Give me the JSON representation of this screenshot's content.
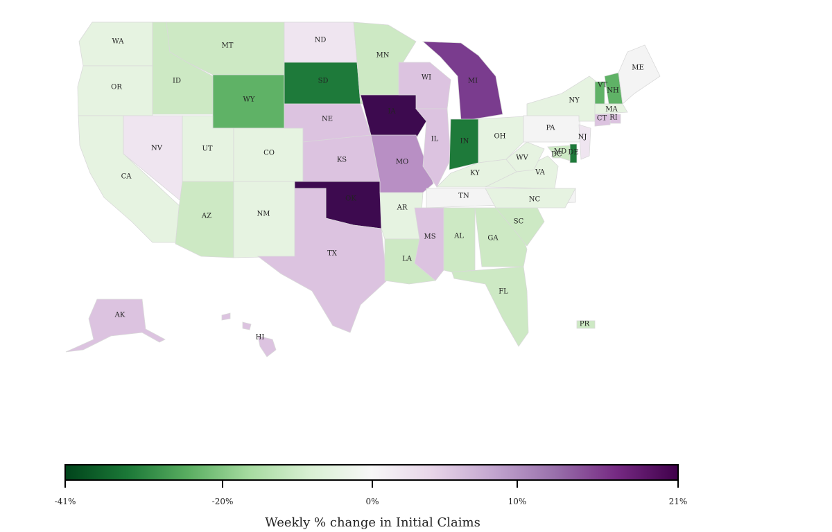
{
  "colors": {
    "dark_green": "#1e7a3a",
    "mid_green": "#5fb266",
    "light_green": "#cde9c4",
    "pale_green": "#e6f3e1",
    "neutral": "#f4f4f4",
    "pale_purple": "#efe5f0",
    "light_purple": "#dcc3e0",
    "mid_purple": "#b88fc4",
    "purple": "#7a3c8e",
    "dark_purple": "#3d0a4f"
  },
  "states": [
    {
      "abbr": "WA",
      "tone": "pale_green"
    },
    {
      "abbr": "OR",
      "tone": "pale_green"
    },
    {
      "abbr": "CA",
      "tone": "pale_green"
    },
    {
      "abbr": "ID",
      "tone": "light_green"
    },
    {
      "abbr": "MT",
      "tone": "light_green"
    },
    {
      "abbr": "WY",
      "tone": "mid_green"
    },
    {
      "abbr": "NV",
      "tone": "pale_purple"
    },
    {
      "abbr": "UT",
      "tone": "pale_green"
    },
    {
      "abbr": "CO",
      "tone": "pale_green"
    },
    {
      "abbr": "AZ",
      "tone": "light_green"
    },
    {
      "abbr": "NM",
      "tone": "pale_green"
    },
    {
      "abbr": "ND",
      "tone": "pale_purple"
    },
    {
      "abbr": "SD",
      "tone": "dark_green"
    },
    {
      "abbr": "NE",
      "tone": "light_purple"
    },
    {
      "abbr": "KS",
      "tone": "light_purple"
    },
    {
      "abbr": "OK",
      "tone": "dark_purple"
    },
    {
      "abbr": "TX",
      "tone": "light_purple"
    },
    {
      "abbr": "MN",
      "tone": "light_green"
    },
    {
      "abbr": "IA",
      "tone": "dark_purple"
    },
    {
      "abbr": "MO",
      "tone": "mid_purple"
    },
    {
      "abbr": "AR",
      "tone": "pale_green"
    },
    {
      "abbr": "LA",
      "tone": "light_green"
    },
    {
      "abbr": "WI",
      "tone": "light_purple"
    },
    {
      "abbr": "IL",
      "tone": "light_purple"
    },
    {
      "abbr": "MI",
      "tone": "purple"
    },
    {
      "abbr": "IN",
      "tone": "dark_green"
    },
    {
      "abbr": "OH",
      "tone": "pale_green"
    },
    {
      "abbr": "KY",
      "tone": "pale_green"
    },
    {
      "abbr": "TN",
      "tone": "neutral"
    },
    {
      "abbr": "MS",
      "tone": "light_purple"
    },
    {
      "abbr": "AL",
      "tone": "light_green"
    },
    {
      "abbr": "GA",
      "tone": "light_green"
    },
    {
      "abbr": "FL",
      "tone": "light_green"
    },
    {
      "abbr": "SC",
      "tone": "light_green"
    },
    {
      "abbr": "NC",
      "tone": "pale_green"
    },
    {
      "abbr": "VA",
      "tone": "pale_green"
    },
    {
      "abbr": "WV",
      "tone": "pale_green"
    },
    {
      "abbr": "PA",
      "tone": "neutral"
    },
    {
      "abbr": "NY",
      "tone": "pale_green"
    },
    {
      "abbr": "VT",
      "tone": "mid_green"
    },
    {
      "abbr": "NH",
      "tone": "mid_green"
    },
    {
      "abbr": "ME",
      "tone": "neutral"
    },
    {
      "abbr": "MA",
      "tone": "pale_green"
    },
    {
      "abbr": "RI",
      "tone": "light_purple"
    },
    {
      "abbr": "CT",
      "tone": "light_purple"
    },
    {
      "abbr": "NJ",
      "tone": "pale_purple"
    },
    {
      "abbr": "DE",
      "tone": "dark_green"
    },
    {
      "abbr": "MD",
      "tone": "light_green"
    },
    {
      "abbr": "DC",
      "tone": "light_green"
    },
    {
      "abbr": "AK",
      "tone": "light_purple"
    },
    {
      "abbr": "HI",
      "tone": "light_purple"
    },
    {
      "abbr": "PR",
      "tone": "light_green"
    }
  ],
  "legend": {
    "title": "Weekly % change in Initial Claims",
    "ticks": [
      "-41%",
      "-20%",
      "0%",
      "10%",
      "21%"
    ],
    "gradient": [
      "#00441b",
      "#1b7837",
      "#5aae61",
      "#a6dba0",
      "#d9f0d3",
      "#f7f7f7",
      "#e7d4e8",
      "#c2a5cf",
      "#9970ab",
      "#762a83",
      "#40004b"
    ]
  }
}
